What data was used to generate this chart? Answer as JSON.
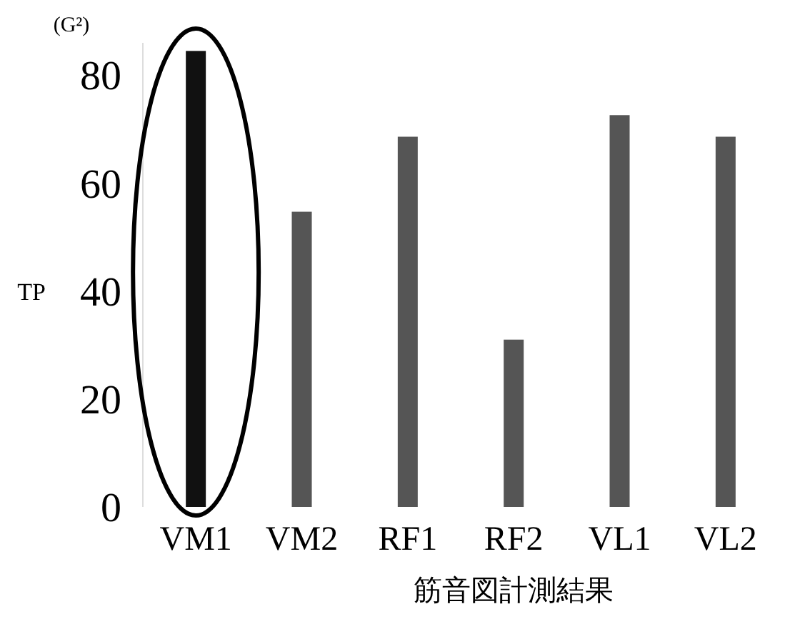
{
  "chart_data": {
    "type": "bar",
    "xlabel": "筋音図計測結果",
    "ylabel": "TP",
    "annotations": [
      "(G²)"
    ],
    "categories": [
      "VM1",
      "VM2",
      "RF1",
      "RF2",
      "VL1",
      "VL2"
    ],
    "values": [
      84.5,
      54.7,
      68.6,
      31,
      72.6,
      68.6
    ],
    "colors": [
      "#111111",
      "#555555",
      "#555555",
      "#555555",
      "#555555",
      "#555555"
    ],
    "ylim": [
      0,
      86
    ],
    "yticks": [
      0,
      20,
      40,
      60,
      80
    ]
  }
}
